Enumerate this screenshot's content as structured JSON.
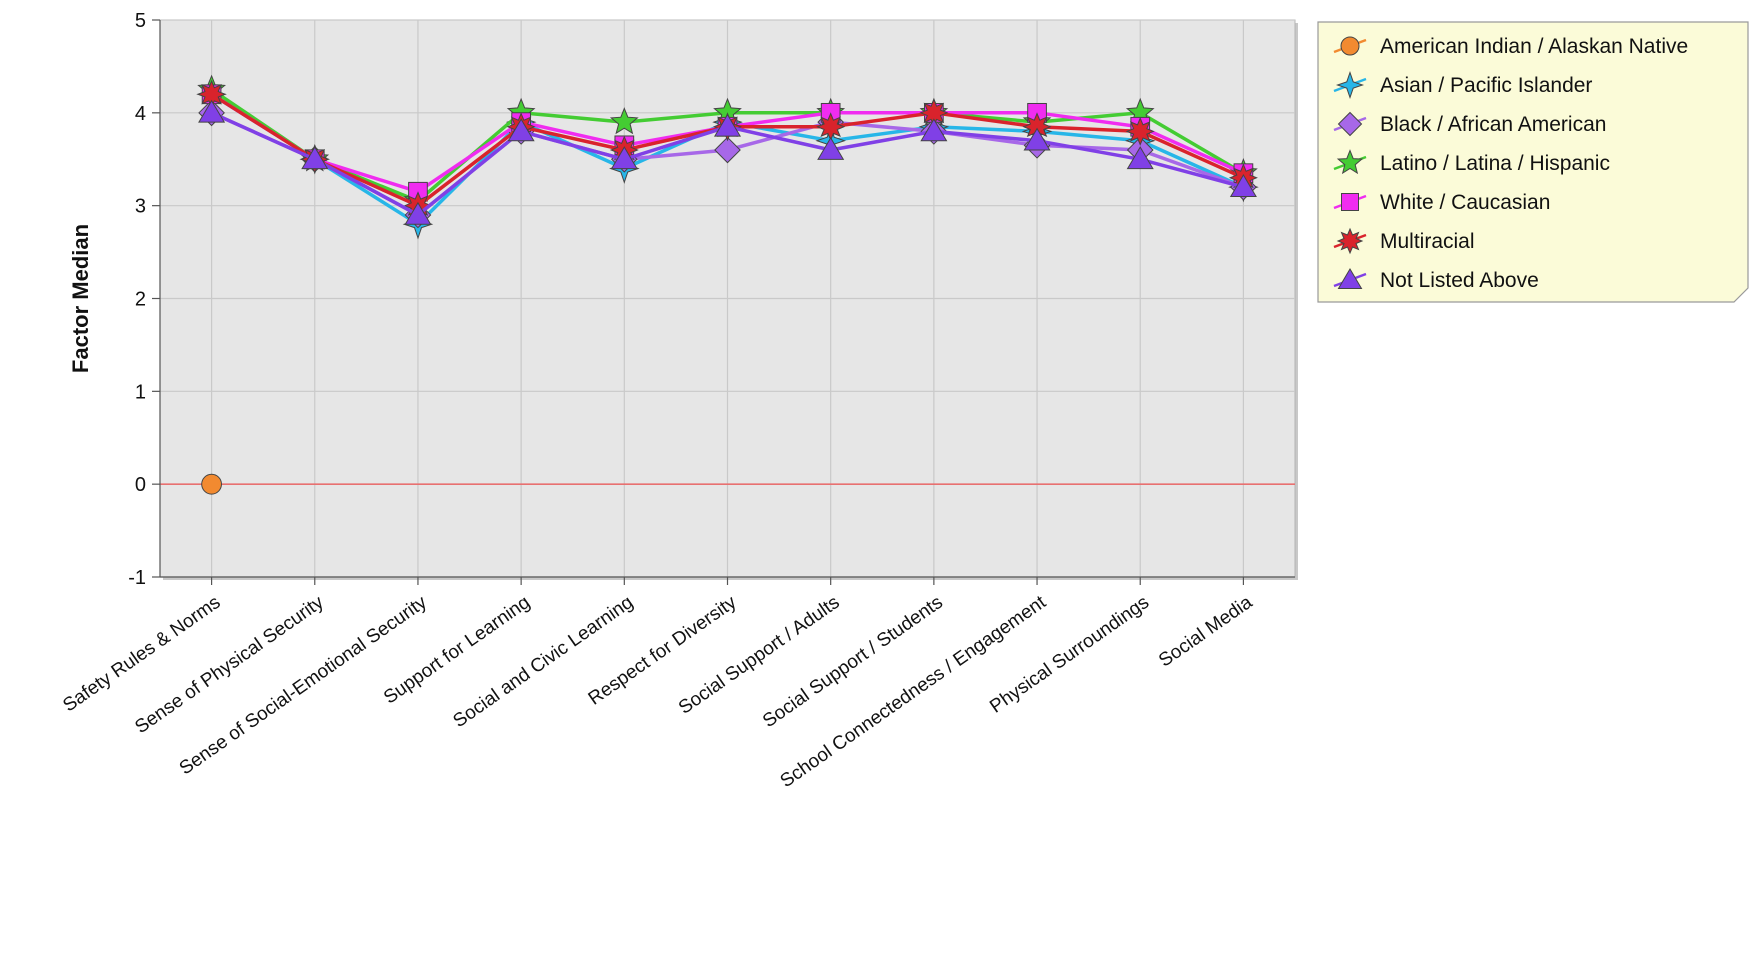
{
  "chart_data": {
    "type": "line",
    "title": "",
    "xlabel": "",
    "ylabel": "Factor Median",
    "ylim": [
      -1,
      5
    ],
    "yticks": [
      "-1",
      "0",
      "1",
      "2",
      "3",
      "4",
      "5"
    ],
    "grid": true,
    "zero_line": true,
    "legend_position": "top-right",
    "categories": [
      "Safety Rules & Norms",
      "Sense of Physical Security",
      "Sense of Social-Emotional Security",
      "Support for Learning",
      "Social and Civic Learning",
      "Respect for Diversity",
      "Social Support / Adults",
      "Social Support / Students",
      "School Connectedness / Engagement",
      "Physical Surroundings",
      "Social Media"
    ],
    "series": [
      {
        "name": "American Indian / Alaskan Native",
        "color": "#f28a30",
        "marker": "circle",
        "values": [
          0,
          null,
          null,
          null,
          null,
          null,
          null,
          null,
          null,
          null,
          null
        ]
      },
      {
        "name": "Asian / Pacific Islander",
        "color": "#27b6e8",
        "marker": "star4",
        "values": [
          4.2,
          3.5,
          2.8,
          3.9,
          3.4,
          3.9,
          3.7,
          3.85,
          3.8,
          3.7,
          3.2
        ]
      },
      {
        "name": "Black / African American",
        "color": "#a768e8",
        "marker": "diamond",
        "values": [
          4.0,
          3.5,
          2.9,
          3.8,
          3.5,
          3.6,
          3.9,
          3.8,
          3.65,
          3.6,
          3.2
        ]
      },
      {
        "name": "Latino / Latina / Hispanic",
        "color": "#44cc33",
        "marker": "star5",
        "values": [
          4.25,
          3.5,
          3.05,
          4.0,
          3.9,
          4.0,
          4.0,
          4.0,
          3.9,
          4.0,
          3.35
        ]
      },
      {
        "name": "White / Caucasian",
        "color": "#f02cf0",
        "marker": "square",
        "values": [
          4.2,
          3.5,
          3.15,
          3.9,
          3.65,
          3.85,
          4.0,
          4.0,
          4.0,
          3.85,
          3.35
        ]
      },
      {
        "name": "Multiracial",
        "color": "#d9232c",
        "marker": "burst",
        "values": [
          4.2,
          3.5,
          3.0,
          3.85,
          3.6,
          3.85,
          3.85,
          4.0,
          3.85,
          3.8,
          3.3
        ]
      },
      {
        "name": "Not Listed Above",
        "color": "#8040e6",
        "marker": "triangle",
        "values": [
          4.0,
          3.5,
          2.9,
          3.8,
          3.5,
          3.85,
          3.6,
          3.8,
          3.7,
          3.5,
          3.2
        ]
      }
    ]
  }
}
